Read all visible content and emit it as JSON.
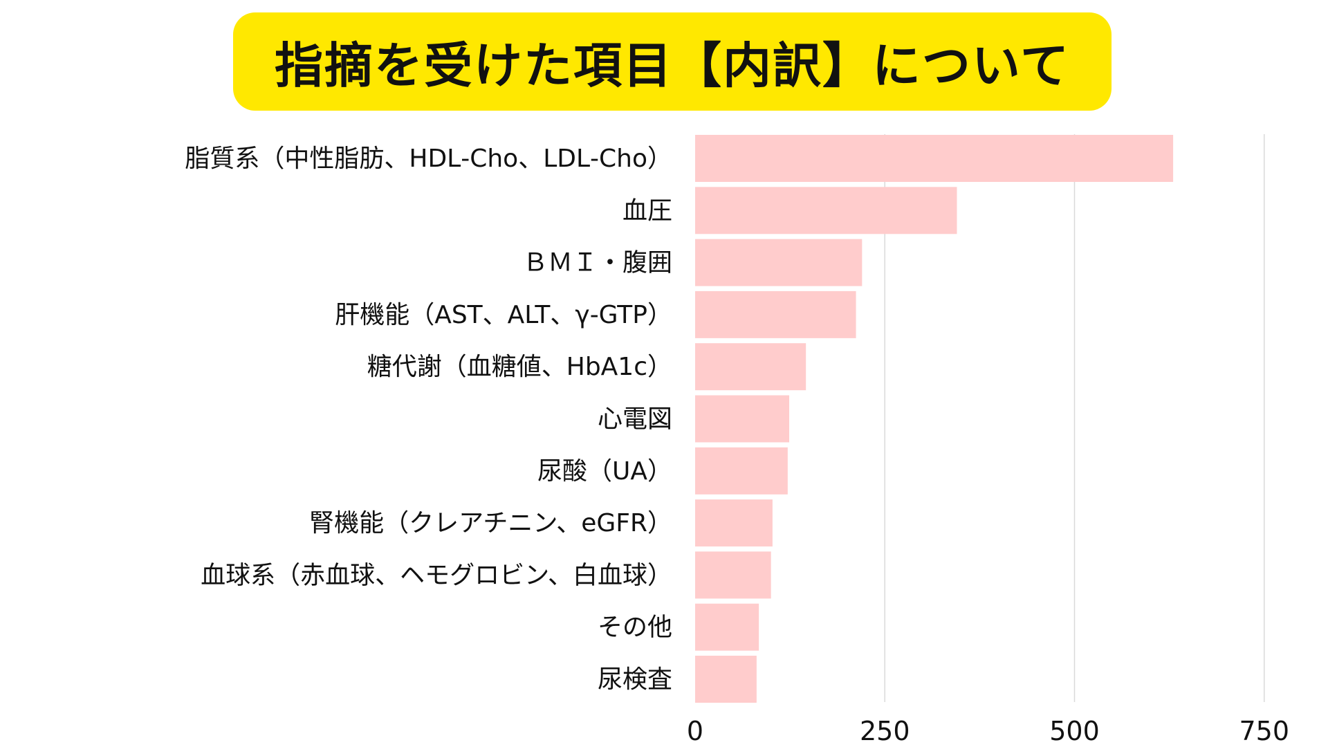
{
  "title": "指摘を受けた項目【内訳】について",
  "colors": {
    "title_background": "#FFE800",
    "bar": "#FFCCCC",
    "grid": "#D9D9D9",
    "text": "#111111"
  },
  "chart_data": {
    "type": "bar",
    "orientation": "horizontal",
    "categories": [
      "脂質系（中性脂肪、HDL‐Cho、LDL‐Cho）",
      "血圧",
      "ＢＭＩ・腹囲",
      "肝機能（AST、ALT、γ‐GTP）",
      "糖代謝（血糖値、HbA1c）",
      "心電図",
      "尿酸（UA）",
      "腎機能（クレアチニン、eGFR）",
      "血球系（赤血球、ヘモグロビン、白血球）",
      "その他",
      "尿検査"
    ],
    "values": [
      630,
      345,
      220,
      212,
      146,
      124,
      122,
      102,
      100,
      84,
      81
    ],
    "xlim": [
      0,
      750
    ],
    "xticks": [
      0,
      250,
      500,
      750
    ],
    "grid": true
  }
}
